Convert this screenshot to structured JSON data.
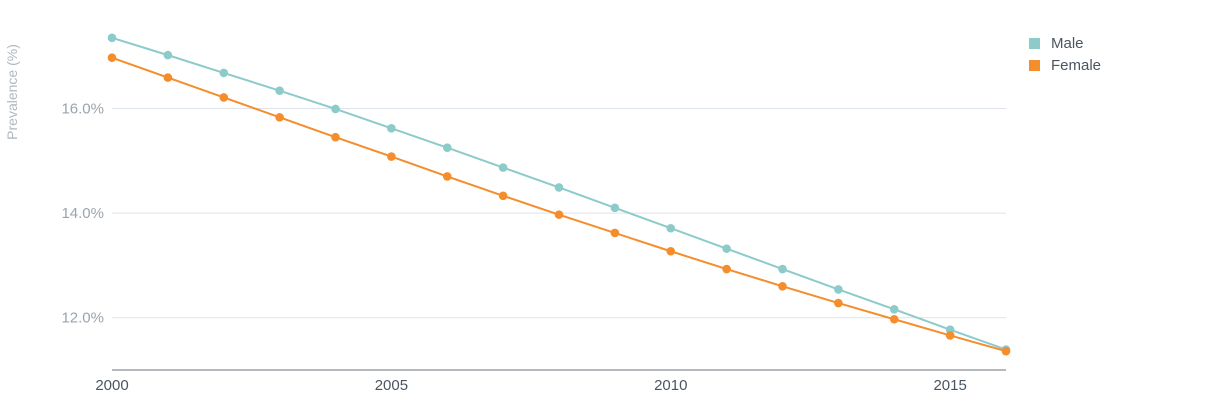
{
  "chart_data": {
    "type": "line",
    "ylabel": "Prevalence (%)",
    "xlabel": "",
    "x": [
      2000,
      2001,
      2002,
      2003,
      2004,
      2005,
      2006,
      2007,
      2008,
      2009,
      2010,
      2011,
      2012,
      2013,
      2014,
      2015,
      2016
    ],
    "x_ticks": [
      2000,
      2005,
      2010,
      2015
    ],
    "x_tick_labels": [
      "2000",
      "2005",
      "2010",
      "2015"
    ],
    "y_ticks": [
      12,
      14,
      16
    ],
    "y_tick_labels": [
      "12.0%",
      "14.0%",
      "16.0%"
    ],
    "xlim": [
      2000,
      2016
    ],
    "ylim": [
      11,
      17.5
    ],
    "grid": "horizontal",
    "legend": "top-right",
    "series": [
      {
        "name": "Male",
        "color": "#8ccbca",
        "values": [
          17.35,
          17.02,
          16.68,
          16.34,
          15.99,
          15.62,
          15.25,
          14.87,
          14.49,
          14.1,
          13.71,
          13.32,
          12.93,
          12.54,
          12.16,
          11.77,
          11.39
        ]
      },
      {
        "name": "Female",
        "color": "#f58d2c",
        "values": [
          16.97,
          16.59,
          16.21,
          15.83,
          15.45,
          15.08,
          14.7,
          14.33,
          13.97,
          13.62,
          13.27,
          12.93,
          12.6,
          12.28,
          11.97,
          11.66,
          11.36
        ]
      }
    ]
  }
}
